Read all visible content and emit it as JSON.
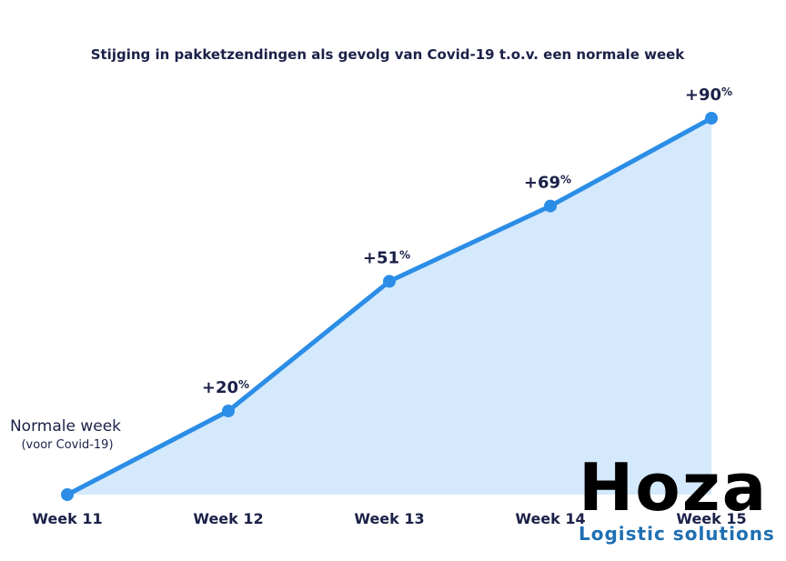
{
  "chart_data": {
    "type": "area",
    "title": "Stijging in pakketzendingen als gevolg van Covid-19 t.o.v. een normale week",
    "categories": [
      "Week 11",
      "Week 12",
      "Week 13",
      "Week 14",
      "Week 15"
    ],
    "values": [
      0,
      20,
      51,
      69,
      90
    ],
    "data_labels": [
      "",
      "+20",
      "+51",
      "+69",
      "+90"
    ],
    "label_suffix": "%",
    "baseline_label": "Normale week",
    "baseline_sublabel": "(voor Covid-19)",
    "ylim": [
      0,
      90
    ],
    "grid": false,
    "colors": {
      "line": "#2b8de6",
      "fill": "#d4e9fc",
      "text": "#1b2148"
    }
  },
  "logo": {
    "word": "Hoza",
    "tagline": "Logistic solutions",
    "tagline_color": "#1f6fb2"
  }
}
